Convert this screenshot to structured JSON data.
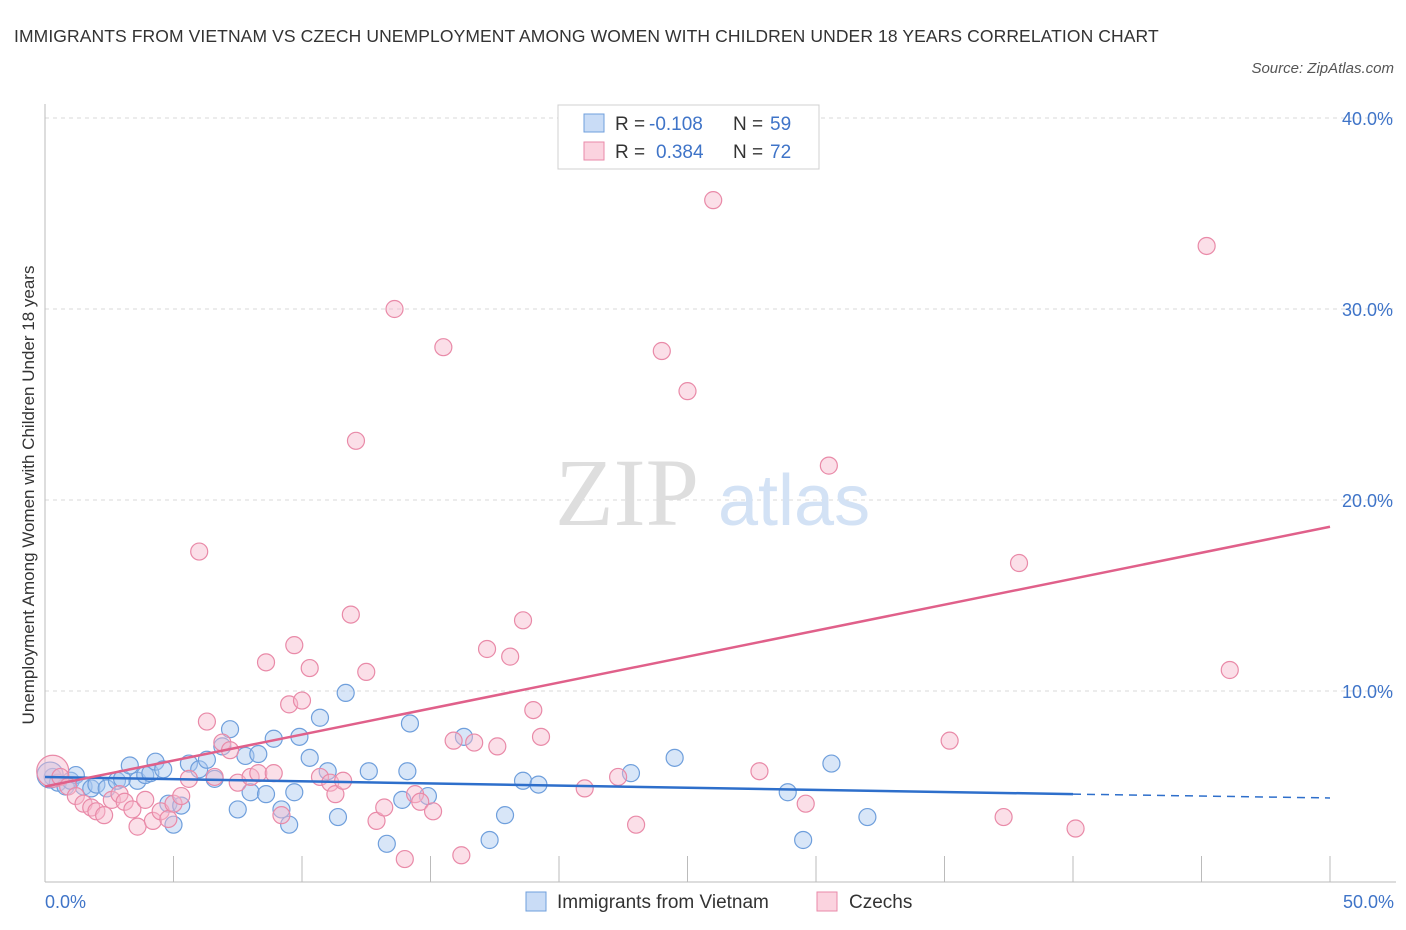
{
  "title": "IMMIGRANTS FROM VIETNAM VS CZECH UNEMPLOYMENT AMONG WOMEN WITH CHILDREN UNDER 18 YEARS CORRELATION CHART",
  "source": "Source: ZipAtlas.com",
  "watermark": {
    "zip": "ZIP",
    "atlas": "atlas"
  },
  "colors": {
    "blue_fill": "#a9c8f0",
    "blue_stroke": "#6f9fdc",
    "blue_line": "#2e6fcb",
    "pink_fill": "#f6b8cb",
    "pink_stroke": "#e98aa8",
    "pink_line": "#e0608a",
    "grid": "#d9d9d9",
    "tick_text": "#3f74c8"
  },
  "legend_top": {
    "blue": {
      "r_label": "R =",
      "r_value": "-0.108",
      "n_label": "N =",
      "n_value": "59"
    },
    "pink": {
      "r_label": "R =",
      "r_value": "0.384",
      "n_label": "N =",
      "n_value": "72"
    }
  },
  "chart_data": {
    "type": "scatter",
    "title": "IMMIGRANTS FROM VIETNAM VS CZECH UNEMPLOYMENT AMONG WOMEN WITH CHILDREN UNDER 18 YEARS CORRELATION CHART",
    "xlabel": "",
    "ylabel": "Unemployment Among Women with Children Under 18 years",
    "xlim": [
      0,
      50
    ],
    "ylim": [
      0,
      40
    ],
    "x_tick_labels": [
      {
        "value": 0,
        "label": "0.0%"
      },
      {
        "value": 50,
        "label": "50.0%"
      }
    ],
    "y_tick_labels": [
      {
        "value": 10,
        "label": "10.0%"
      },
      {
        "value": 20,
        "label": "20.0%"
      },
      {
        "value": 30,
        "label": "30.0%"
      },
      {
        "value": 40,
        "label": "40.0%"
      }
    ],
    "grid": "horizontal dashed",
    "legend_position": "bottom-center",
    "series": [
      {
        "name": "Immigrants from Vietnam",
        "color": "#a9c8f0",
        "trend": {
          "x": [
            0,
            40
          ],
          "y": [
            5.5,
            4.6
          ],
          "dashed_extension": {
            "x": [
              40,
              50
            ],
            "y": [
              4.6,
              4.4
            ]
          }
        },
        "points": [
          [
            0.3,
            5.5
          ],
          [
            0.5,
            5.2
          ],
          [
            0.8,
            5.0
          ],
          [
            1.0,
            5.3
          ],
          [
            1.2,
            5.6
          ],
          [
            1.5,
            5.0
          ],
          [
            1.8,
            4.9
          ],
          [
            2.0,
            5.1
          ],
          [
            2.4,
            4.9
          ],
          [
            2.8,
            5.3
          ],
          [
            3.0,
            5.4
          ],
          [
            3.3,
            6.1
          ],
          [
            3.6,
            5.3
          ],
          [
            3.9,
            5.6
          ],
          [
            4.1,
            5.7
          ],
          [
            4.3,
            6.3
          ],
          [
            4.6,
            5.9
          ],
          [
            4.8,
            4.1
          ],
          [
            5.0,
            3.0
          ],
          [
            5.3,
            4.0
          ],
          [
            5.6,
            6.2
          ],
          [
            6.0,
            5.9
          ],
          [
            6.3,
            6.4
          ],
          [
            6.6,
            5.4
          ],
          [
            6.9,
            7.1
          ],
          [
            7.2,
            8.0
          ],
          [
            7.5,
            3.8
          ],
          [
            7.8,
            6.6
          ],
          [
            8.0,
            4.7
          ],
          [
            8.3,
            6.7
          ],
          [
            8.6,
            4.6
          ],
          [
            8.9,
            7.5
          ],
          [
            9.2,
            3.8
          ],
          [
            9.5,
            3.0
          ],
          [
            9.7,
            4.7
          ],
          [
            9.9,
            7.6
          ],
          [
            10.3,
            6.5
          ],
          [
            10.7,
            8.6
          ],
          [
            11.0,
            5.8
          ],
          [
            11.4,
            3.4
          ],
          [
            11.7,
            9.9
          ],
          [
            12.6,
            5.8
          ],
          [
            13.3,
            2.0
          ],
          [
            13.9,
            4.3
          ],
          [
            14.1,
            5.8
          ],
          [
            14.2,
            8.3
          ],
          [
            14.9,
            4.5
          ],
          [
            16.3,
            7.6
          ],
          [
            17.3,
            2.2
          ],
          [
            17.9,
            3.5
          ],
          [
            18.6,
            5.3
          ],
          [
            19.2,
            5.1
          ],
          [
            22.8,
            5.7
          ],
          [
            24.5,
            6.5
          ],
          [
            28.9,
            4.7
          ],
          [
            29.5,
            2.2
          ],
          [
            30.6,
            6.2
          ],
          [
            32.0,
            3.4
          ],
          [
            0.2,
            5.6
          ]
        ]
      },
      {
        "name": "Czechs",
        "color": "#f6b8cb",
        "trend": {
          "x": [
            0,
            50
          ],
          "y": [
            5.0,
            18.6
          ]
        },
        "points": [
          [
            0.3,
            5.8
          ],
          [
            0.6,
            5.5
          ],
          [
            0.9,
            5.0
          ],
          [
            1.2,
            4.5
          ],
          [
            1.5,
            4.1
          ],
          [
            1.8,
            3.9
          ],
          [
            2.0,
            3.7
          ],
          [
            2.3,
            3.5
          ],
          [
            2.6,
            4.3
          ],
          [
            2.9,
            4.6
          ],
          [
            3.1,
            4.2
          ],
          [
            3.4,
            3.8
          ],
          [
            3.6,
            2.9
          ],
          [
            3.9,
            4.3
          ],
          [
            4.2,
            3.2
          ],
          [
            4.5,
            3.7
          ],
          [
            4.8,
            3.3
          ],
          [
            5.0,
            4.1
          ],
          [
            5.3,
            4.5
          ],
          [
            5.6,
            5.4
          ],
          [
            6.0,
            17.3
          ],
          [
            6.3,
            8.4
          ],
          [
            6.6,
            5.5
          ],
          [
            6.9,
            7.3
          ],
          [
            7.2,
            6.9
          ],
          [
            7.5,
            5.2
          ],
          [
            8.0,
            5.5
          ],
          [
            8.3,
            5.7
          ],
          [
            8.6,
            11.5
          ],
          [
            8.9,
            5.7
          ],
          [
            9.2,
            3.5
          ],
          [
            9.5,
            9.3
          ],
          [
            9.7,
            12.4
          ],
          [
            10.0,
            9.5
          ],
          [
            10.3,
            11.2
          ],
          [
            10.7,
            5.5
          ],
          [
            11.1,
            5.2
          ],
          [
            11.3,
            4.6
          ],
          [
            11.6,
            5.3
          ],
          [
            11.9,
            14.0
          ],
          [
            12.1,
            23.1
          ],
          [
            12.5,
            11.0
          ],
          [
            12.9,
            3.2
          ],
          [
            13.2,
            3.9
          ],
          [
            13.6,
            30.0
          ],
          [
            14.0,
            1.2
          ],
          [
            14.4,
            4.6
          ],
          [
            14.6,
            4.2
          ],
          [
            15.1,
            3.7
          ],
          [
            15.5,
            28.0
          ],
          [
            15.9,
            7.4
          ],
          [
            16.2,
            1.4
          ],
          [
            16.7,
            7.3
          ],
          [
            17.2,
            12.2
          ],
          [
            17.6,
            7.1
          ],
          [
            18.1,
            11.8
          ],
          [
            18.6,
            13.7
          ],
          [
            19.0,
            9.0
          ],
          [
            19.3,
            7.6
          ],
          [
            21.0,
            4.9
          ],
          [
            22.3,
            5.5
          ],
          [
            23.0,
            3.0
          ],
          [
            24.0,
            27.8
          ],
          [
            25.0,
            25.7
          ],
          [
            26.0,
            35.7
          ],
          [
            27.8,
            5.8
          ],
          [
            29.6,
            4.1
          ],
          [
            30.5,
            21.8
          ],
          [
            35.2,
            7.4
          ],
          [
            37.3,
            3.4
          ],
          [
            40.1,
            2.8
          ],
          [
            45.2,
            33.3
          ]
        ]
      }
    ],
    "extra_points_czechs": [
      [
        37.9,
        16.7
      ],
      [
        46.1,
        11.1
      ]
    ]
  },
  "bottom_legend": {
    "blue_label": "Immigrants from Vietnam",
    "pink_label": "Czechs"
  }
}
